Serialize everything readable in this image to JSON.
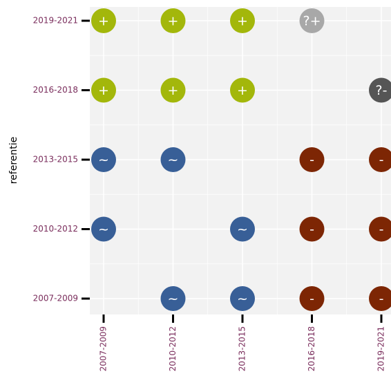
{
  "chart_data": {
    "type": "dotmatrix",
    "categories": [
      "2007-2009",
      "2010-2012",
      "2013-2015",
      "2016-2018",
      "2019-2021"
    ],
    "y_categories": [
      "2007-2009",
      "2010-2012",
      "2013-2015",
      "2016-2018",
      "2019-2021"
    ],
    "ylabel": "referentie",
    "grid": true,
    "points": [
      {
        "x": "2007-2009",
        "y": "2019-2021",
        "label": "+",
        "color": "#a3b70b"
      },
      {
        "x": "2010-2012",
        "y": "2019-2021",
        "label": "+",
        "color": "#a3b70b"
      },
      {
        "x": "2013-2015",
        "y": "2019-2021",
        "label": "+",
        "color": "#a3b70b"
      },
      {
        "x": "2016-2018",
        "y": "2019-2021",
        "label": "?+",
        "color": "#a8a8a8"
      },
      {
        "x": "2007-2009",
        "y": "2016-2018",
        "label": "+",
        "color": "#a3b70b"
      },
      {
        "x": "2010-2012",
        "y": "2016-2018",
        "label": "+",
        "color": "#a3b70b"
      },
      {
        "x": "2013-2015",
        "y": "2016-2018",
        "label": "+",
        "color": "#a3b70b"
      },
      {
        "x": "2019-2021",
        "y": "2016-2018",
        "label": "?-",
        "color": "#555555"
      },
      {
        "x": "2007-2009",
        "y": "2013-2015",
        "label": "~",
        "color": "#385f97"
      },
      {
        "x": "2010-2012",
        "y": "2013-2015",
        "label": "~",
        "color": "#385f97"
      },
      {
        "x": "2016-2018",
        "y": "2013-2015",
        "label": "-",
        "color": "#7d2604"
      },
      {
        "x": "2019-2021",
        "y": "2013-2015",
        "label": "-",
        "color": "#7d2604"
      },
      {
        "x": "2007-2009",
        "y": "2010-2012",
        "label": "~",
        "color": "#385f97"
      },
      {
        "x": "2013-2015",
        "y": "2010-2012",
        "label": "~",
        "color": "#385f97"
      },
      {
        "x": "2016-2018",
        "y": "2010-2012",
        "label": "-",
        "color": "#7d2604"
      },
      {
        "x": "2019-2021",
        "y": "2010-2012",
        "label": "-",
        "color": "#7d2604"
      },
      {
        "x": "2010-2012",
        "y": "2007-2009",
        "label": "~",
        "color": "#385f97"
      },
      {
        "x": "2013-2015",
        "y": "2007-2009",
        "label": "~",
        "color": "#385f97"
      },
      {
        "x": "2016-2018",
        "y": "2007-2009",
        "label": "-",
        "color": "#7d2604"
      },
      {
        "x": "2019-2021",
        "y": "2007-2009",
        "label": "-",
        "color": "#7d2604"
      }
    ]
  }
}
